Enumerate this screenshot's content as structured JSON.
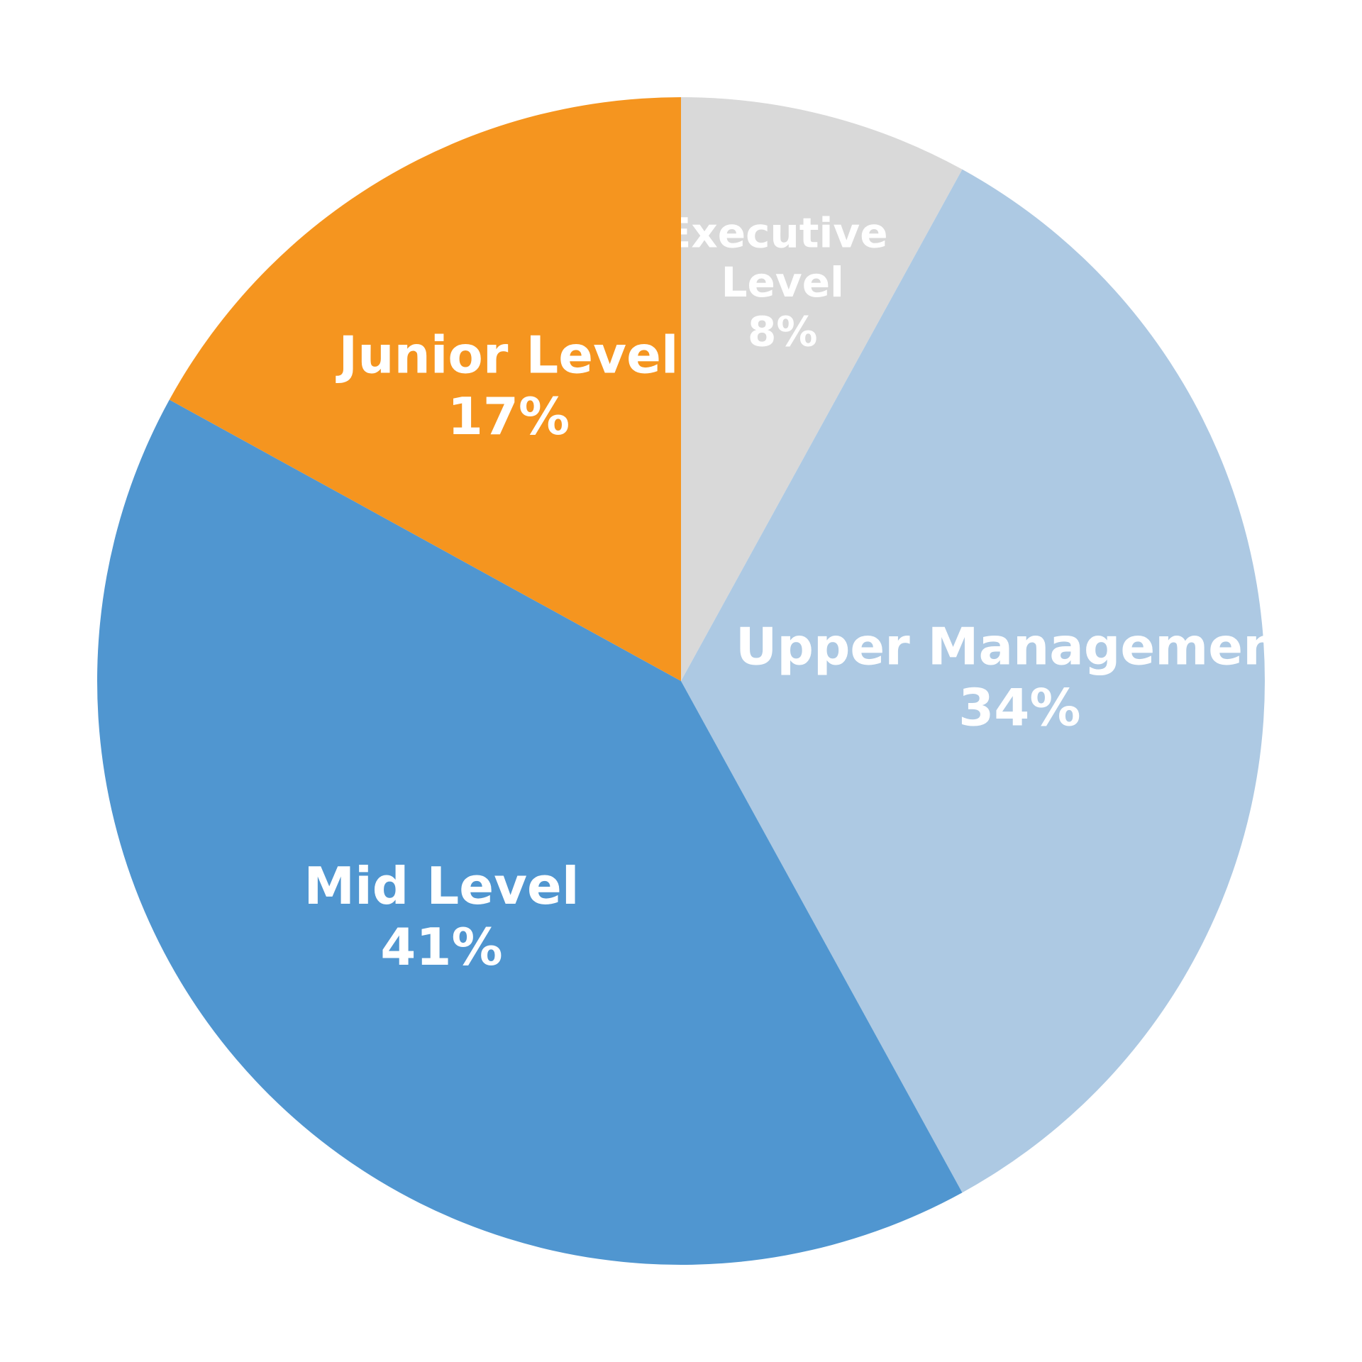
{
  "chart_data": {
    "type": "pie",
    "categories": [
      "Executive Level",
      "Upper Management",
      "Mid Level",
      "Junior Level"
    ],
    "values": [
      8,
      34,
      41,
      17
    ],
    "value_labels": [
      "8%",
      "34%",
      "41%",
      "17%"
    ],
    "colors": [
      "#d9d9d9",
      "#adc9e3",
      "#5096d0",
      "#f5951f"
    ]
  }
}
